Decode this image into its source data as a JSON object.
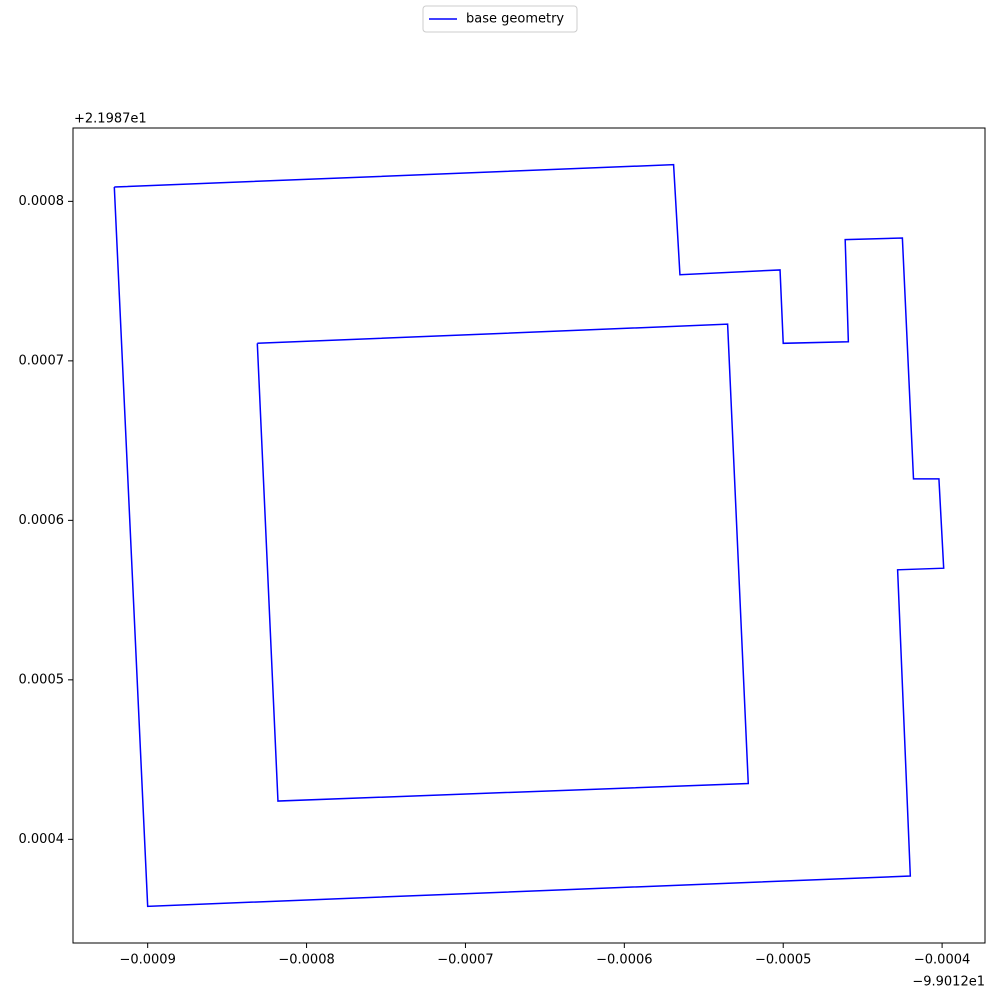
{
  "chart_data": {
    "type": "line",
    "x_offset_label": "−9.9012e1",
    "y_offset_label": "+2.1987e1",
    "legend": "upper center",
    "series": [
      {
        "name": "base geometry",
        "color": "#0000ff",
        "x": [
          -0.000921,
          -0.000569,
          -0.000565,
          -0.000502,
          -0.0005,
          -0.000459,
          -0.000461,
          -0.000425,
          -0.000418,
          -0.000402,
          -0.000399,
          -0.000428,
          -0.00042,
          -0.0009,
          -0.000921,
          null,
          -0.000831,
          -0.000535,
          -0.000522,
          -0.000818,
          -0.000831
        ],
        "values": [
          0.000809,
          0.000823,
          0.000754,
          0.000757,
          0.000711,
          0.000712,
          0.000776,
          0.000777,
          0.000626,
          0.000626,
          0.00057,
          0.000569,
          0.000377,
          0.000358,
          0.000809,
          null,
          0.000711,
          0.000723,
          0.000435,
          0.000424,
          0.000711
        ]
      }
    ],
    "xlim": [
      -0.000947,
      -0.000373
    ],
    "ylim": [
      0.000335,
      0.000846
    ],
    "xticks": [
      {
        "value": -0.0009,
        "label": "−0.0009"
      },
      {
        "value": -0.0008,
        "label": "−0.0008"
      },
      {
        "value": -0.0007,
        "label": "−0.0007"
      },
      {
        "value": -0.0006,
        "label": "−0.0006"
      },
      {
        "value": -0.0005,
        "label": "−0.0005"
      },
      {
        "value": -0.0004,
        "label": "−0.0004"
      }
    ],
    "yticks": [
      0.0004,
      0.0005,
      0.0006,
      0.0007,
      0.0008
    ],
    "grid": false
  }
}
